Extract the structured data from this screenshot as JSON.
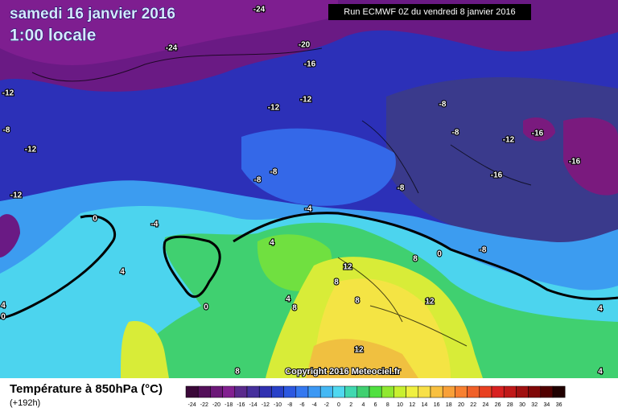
{
  "header": {
    "date": "samedi 16 janvier 2016",
    "time": "1:00 locale",
    "run": "Run ECMWF 0Z du vendredi 8 janvier 2016"
  },
  "copyright": "Copyright 2016 Meteociel.fr",
  "footer": {
    "title": "Température à 850hPa (°C)",
    "lead": "(+192h)"
  },
  "legend": {
    "ticks": [
      -24,
      -22,
      -20,
      -18,
      -16,
      -14,
      -12,
      -10,
      -8,
      -6,
      -4,
      -2,
      0,
      2,
      4,
      6,
      8,
      10,
      12,
      14,
      16,
      18,
      20,
      22,
      24,
      26,
      28,
      30,
      32,
      34,
      36
    ],
    "colors": [
      "#3a0838",
      "#54105a",
      "#6c1878",
      "#822090",
      "#5a2a8c",
      "#46309c",
      "#3030b0",
      "#2840c8",
      "#2c58e0",
      "#3478f0",
      "#3c98f4",
      "#44b8f4",
      "#50d8f0",
      "#40d8b0",
      "#40d070",
      "#50e040",
      "#90e830",
      "#c8f030",
      "#f0f040",
      "#f8e048",
      "#f8c040",
      "#f8a038",
      "#f88030",
      "#f06028",
      "#e84020",
      "#d82020",
      "#c01818",
      "#a01010",
      "#800808",
      "#500000",
      "#200000"
    ]
  },
  "isotherm_labels": [
    -24,
    -24,
    -20,
    -16,
    -12,
    -12,
    -12,
    -8,
    -8,
    -12,
    -8,
    -16,
    -12,
    -16,
    -16,
    -8,
    -8,
    -8,
    -12,
    -4,
    0,
    -4,
    0,
    -8,
    4,
    8,
    12,
    4,
    8,
    8,
    12,
    4,
    8,
    0,
    4,
    0,
    4,
    12,
    4,
    8
  ]
}
